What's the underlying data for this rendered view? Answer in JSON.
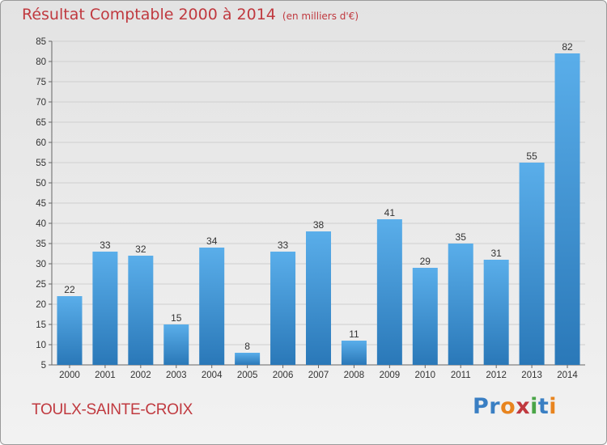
{
  "title": "Résultat Comptable 2000 à 2014",
  "subtitle": "(en milliers d'€)",
  "town": "TOULX-SAINTE-CROIX",
  "logo": {
    "text": "Proxiti",
    "colors": [
      "#3a7fc3",
      "#3a7fc3",
      "#e8841e",
      "#c0393f",
      "#4aa547",
      "#3a7fc3",
      "#e8841e"
    ]
  },
  "colors": {
    "bar_light": "#5aaeea",
    "bar_dark": "#2a78b8",
    "title": "#c0393f",
    "grid": "#cfcfcf"
  },
  "chart_data": {
    "type": "bar",
    "categories": [
      "2000",
      "2001",
      "2002",
      "2003",
      "2004",
      "2005",
      "2006",
      "2007",
      "2008",
      "2009",
      "2010",
      "2011",
      "2012",
      "2013",
      "2014"
    ],
    "values": [
      22,
      33,
      32,
      15,
      34,
      8,
      33,
      38,
      11,
      41,
      29,
      35,
      31,
      55,
      82
    ],
    "ylim": [
      5,
      85
    ],
    "yticks": [
      5,
      10,
      15,
      20,
      25,
      30,
      35,
      40,
      45,
      50,
      55,
      60,
      65,
      70,
      75,
      80,
      85
    ],
    "grid": true
  }
}
